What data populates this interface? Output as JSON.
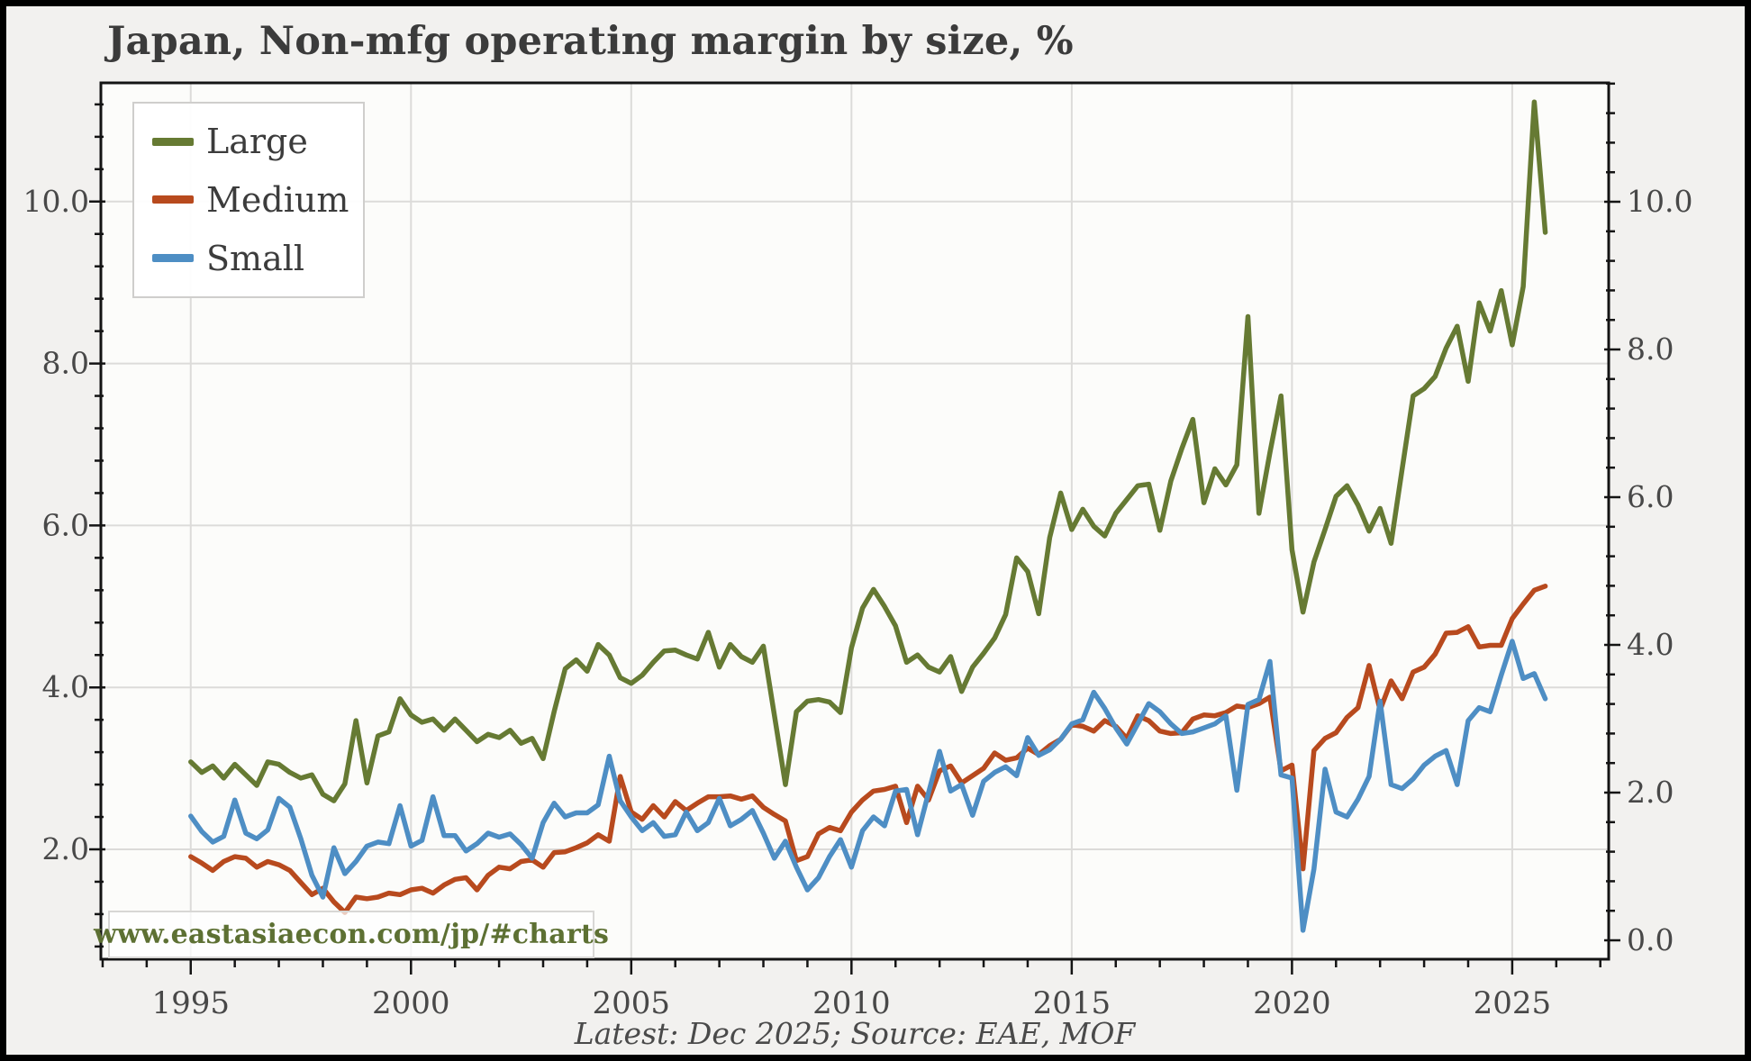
{
  "title": "Japan, Non-mfg operating margin by size, %",
  "footer": "Latest: Dec 2025; Source: EAE, MOF",
  "watermark": "www.eastasiaecon.com/jp/#charts",
  "colors": {
    "large": "#667a33",
    "medium": "#b84a1e",
    "small": "#4e8ec4",
    "grid": "#dcdbd9",
    "spine": "#141414",
    "text": "#484848",
    "title_text": "#3b3b3b",
    "watermark_text": "#5d7033",
    "plot_bg": "#fcfcfa",
    "outer_bg": "#f2f1ef"
  },
  "legend": {
    "items": [
      {
        "id": "large",
        "label": "Large"
      },
      {
        "id": "medium",
        "label": "Medium"
      },
      {
        "id": "small",
        "label": "Small"
      }
    ]
  },
  "axes": {
    "x_tick_labels": [
      "1995",
      "2000",
      "2005",
      "2010",
      "2015",
      "2020",
      "2025"
    ],
    "x_tick_values": [
      1995,
      2000,
      2005,
      2010,
      2015,
      2020,
      2025
    ],
    "x_minor_step_years": 1,
    "left_tick_labels": [
      "2.0",
      "4.0",
      "6.0",
      "8.0",
      "10.0"
    ],
    "left_tick_values": [
      2,
      4,
      6,
      8,
      10
    ],
    "right_tick_labels": [
      "0.0",
      "2.0",
      "4.0",
      "6.0",
      "8.0",
      "10.0"
    ],
    "right_tick_values": [
      0,
      2,
      4,
      6,
      8,
      10
    ],
    "y_minor_step": 0.4
  },
  "chart_data": {
    "type": "line",
    "title": "Japan, Non-mfg operating margin by size, %",
    "x_start": 1995.0,
    "x_step": 0.25,
    "frequency": "quarterly",
    "x_end_label": "Dec 2025",
    "xlim": [
      1992.96,
      2027.19
    ],
    "ylim_left": [
      0.643,
      11.466
    ],
    "ylim_right": [
      -0.256,
      11.61
    ],
    "grid": true,
    "legend_position": "upper left",
    "series": [
      {
        "name": "Large",
        "axis": "left",
        "values": [
          3.08,
          2.95,
          3.03,
          2.88,
          3.05,
          2.92,
          2.79,
          3.08,
          3.05,
          2.95,
          2.88,
          2.92,
          2.68,
          2.6,
          2.81,
          3.59,
          2.82,
          3.4,
          3.45,
          3.86,
          3.66,
          3.57,
          3.61,
          3.47,
          3.61,
          3.47,
          3.33,
          3.42,
          3.38,
          3.47,
          3.31,
          3.37,
          3.12,
          3.7,
          4.23,
          4.34,
          4.2,
          4.53,
          4.4,
          4.12,
          4.05,
          4.15,
          4.31,
          4.45,
          4.46,
          4.4,
          4.35,
          4.68,
          4.25,
          4.53,
          4.38,
          4.31,
          4.51,
          3.66,
          2.8,
          3.7,
          3.83,
          3.85,
          3.82,
          3.69,
          4.49,
          4.98,
          5.21,
          5.0,
          4.76,
          4.31,
          4.4,
          4.25,
          4.19,
          4.38,
          3.95,
          4.25,
          4.42,
          4.61,
          4.9,
          5.6,
          5.43,
          4.91,
          5.85,
          6.4,
          5.95,
          6.2,
          5.99,
          5.87,
          6.15,
          6.32,
          6.49,
          6.51,
          5.94,
          6.55,
          6.95,
          7.31,
          6.28,
          6.7,
          6.5,
          6.75,
          8.58,
          6.15,
          6.9,
          7.6,
          5.7,
          4.93,
          5.55,
          5.95,
          6.36,
          6.49,
          6.25,
          5.93,
          6.21,
          5.78,
          6.69,
          7.6,
          7.69,
          7.84,
          8.19,
          8.46,
          7.78,
          8.75,
          8.4,
          8.9,
          8.23,
          8.95,
          11.23,
          9.62
        ]
      },
      {
        "name": "Medium",
        "axis": "left",
        "values": [
          1.91,
          1.83,
          1.74,
          1.85,
          1.91,
          1.89,
          1.78,
          1.85,
          1.81,
          1.74,
          1.59,
          1.44,
          1.52,
          1.35,
          1.22,
          1.41,
          1.39,
          1.41,
          1.46,
          1.44,
          1.5,
          1.52,
          1.46,
          1.56,
          1.63,
          1.65,
          1.5,
          1.68,
          1.78,
          1.76,
          1.85,
          1.87,
          1.78,
          1.96,
          1.97,
          2.02,
          2.08,
          2.18,
          2.1,
          2.9,
          2.46,
          2.37,
          2.54,
          2.4,
          2.59,
          2.48,
          2.57,
          2.65,
          2.65,
          2.66,
          2.62,
          2.66,
          2.52,
          2.43,
          2.35,
          1.86,
          1.91,
          2.19,
          2.27,
          2.23,
          2.46,
          2.61,
          2.72,
          2.74,
          2.78,
          2.33,
          2.78,
          2.61,
          2.97,
          3.03,
          2.82,
          2.91,
          3.0,
          3.19,
          3.1,
          3.13,
          3.25,
          3.17,
          3.28,
          3.36,
          3.54,
          3.52,
          3.46,
          3.59,
          3.52,
          3.37,
          3.65,
          3.59,
          3.46,
          3.43,
          3.44,
          3.61,
          3.66,
          3.65,
          3.69,
          3.77,
          3.75,
          3.8,
          3.88,
          2.97,
          3.04,
          1.76,
          3.22,
          3.37,
          3.44,
          3.63,
          3.75,
          4.27,
          3.72,
          4.08,
          3.86,
          4.19,
          4.25,
          4.41,
          4.67,
          4.68,
          4.75,
          4.5,
          4.52,
          4.52,
          4.85,
          5.03,
          5.2,
          5.25
        ]
      },
      {
        "name": "Small",
        "axis": "left",
        "values": [
          2.41,
          2.22,
          2.09,
          2.16,
          2.61,
          2.2,
          2.13,
          2.24,
          2.63,
          2.52,
          2.13,
          1.68,
          1.41,
          2.02,
          1.7,
          1.85,
          2.04,
          2.09,
          2.07,
          2.54,
          2.04,
          2.11,
          2.65,
          2.17,
          2.17,
          1.98,
          2.07,
          2.2,
          2.15,
          2.19,
          2.06,
          1.89,
          2.33,
          2.57,
          2.4,
          2.45,
          2.45,
          2.55,
          3.15,
          2.6,
          2.4,
          2.23,
          2.33,
          2.16,
          2.18,
          2.46,
          2.23,
          2.33,
          2.63,
          2.29,
          2.37,
          2.48,
          2.2,
          1.89,
          2.1,
          1.78,
          1.5,
          1.65,
          1.91,
          2.12,
          1.78,
          2.23,
          2.4,
          2.29,
          2.72,
          2.74,
          2.18,
          2.7,
          3.21,
          2.72,
          2.8,
          2.42,
          2.84,
          2.95,
          3.02,
          2.91,
          3.38,
          3.16,
          3.23,
          3.36,
          3.55,
          3.6,
          3.94,
          3.74,
          3.5,
          3.3,
          3.55,
          3.8,
          3.7,
          3.55,
          3.43,
          3.45,
          3.5,
          3.55,
          3.65,
          2.73,
          3.79,
          3.85,
          4.32,
          2.92,
          2.88,
          1.0,
          1.76,
          2.99,
          2.46,
          2.4,
          2.62,
          2.9,
          3.83,
          2.8,
          2.75,
          2.87,
          3.04,
          3.15,
          3.22,
          2.8,
          3.59,
          3.75,
          3.7,
          4.15,
          4.57,
          4.11,
          4.17,
          3.86
        ]
      }
    ]
  }
}
